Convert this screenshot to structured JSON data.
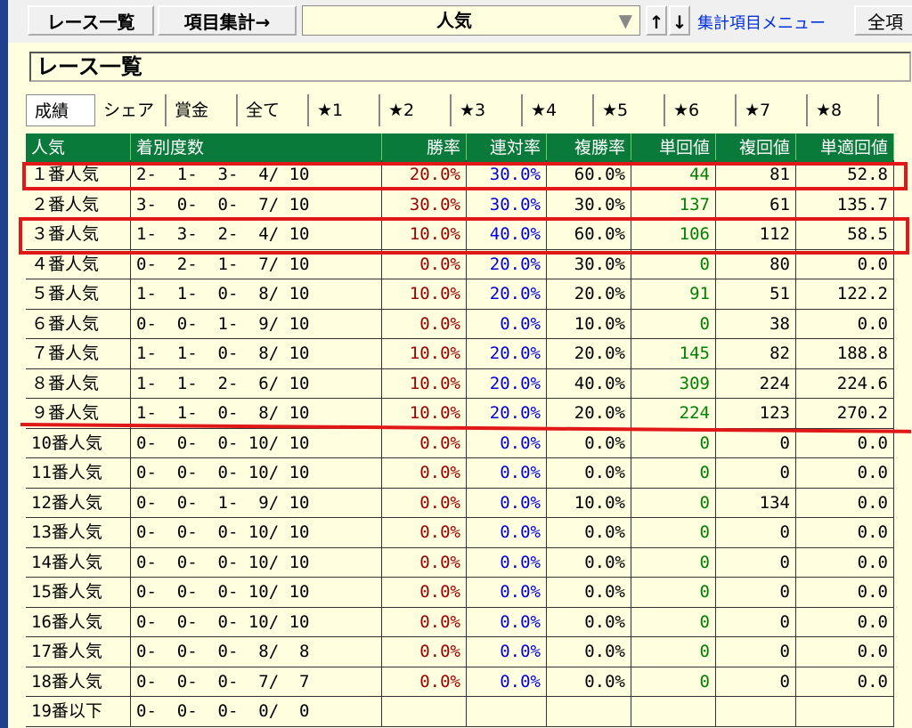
{
  "toolbar": {
    "race_list": "レース一覧",
    "item_summary": "項目集計→",
    "selector": "人気",
    "dropdown_arrow": "▼",
    "sort_up": "↑",
    "sort_down": "↓",
    "menu_link": "集計項目メニュー",
    "all_items": "全項"
  },
  "panel_title": "レース一覧",
  "tabs": [
    "成績",
    "シェア",
    "賞金",
    "全て",
    "★1",
    "★2",
    "★3",
    "★4",
    "★5",
    "★6",
    "★7",
    "★8"
  ],
  "table": {
    "headers": [
      "人気",
      "着別度数",
      "勝率",
      "連対率",
      "複勝率",
      "単回値",
      "複回値",
      "単適回値"
    ],
    "rows": [
      [
        "１番人気",
        "2-  1-  3-  4/ 10",
        "20.0%",
        "30.0%",
        "60.0%",
        "44",
        "81",
        "52.8"
      ],
      [
        "２番人気",
        "3-  0-  0-  7/ 10",
        "30.0%",
        "30.0%",
        "30.0%",
        "137",
        "61",
        "135.7"
      ],
      [
        "３番人気",
        "1-  3-  2-  4/ 10",
        "10.0%",
        "40.0%",
        "60.0%",
        "106",
        "112",
        "58.5"
      ],
      [
        "４番人気",
        "0-  2-  1-  7/ 10",
        "0.0%",
        "20.0%",
        "30.0%",
        "0",
        "80",
        "0.0"
      ],
      [
        "５番人気",
        "1-  1-  0-  8/ 10",
        "10.0%",
        "20.0%",
        "20.0%",
        "91",
        "51",
        "122.2"
      ],
      [
        "６番人気",
        "0-  0-  1-  9/ 10",
        "0.0%",
        "0.0%",
        "10.0%",
        "0",
        "38",
        "0.0"
      ],
      [
        "７番人気",
        "1-  1-  0-  8/ 10",
        "10.0%",
        "20.0%",
        "20.0%",
        "145",
        "82",
        "188.8"
      ],
      [
        "８番人気",
        "1-  1-  2-  6/ 10",
        "10.0%",
        "20.0%",
        "40.0%",
        "309",
        "224",
        "224.6"
      ],
      [
        "９番人気",
        "1-  1-  0-  8/ 10",
        "10.0%",
        "20.0%",
        "20.0%",
        "224",
        "123",
        "270.2"
      ],
      [
        "10番人気",
        "0-  0-  0- 10/ 10",
        "0.0%",
        "0.0%",
        "0.0%",
        "0",
        "0",
        "0.0"
      ],
      [
        "11番人気",
        "0-  0-  0- 10/ 10",
        "0.0%",
        "0.0%",
        "0.0%",
        "0",
        "0",
        "0.0"
      ],
      [
        "12番人気",
        "0-  0-  1-  9/ 10",
        "0.0%",
        "0.0%",
        "10.0%",
        "0",
        "134",
        "0.0"
      ],
      [
        "13番人気",
        "0-  0-  0- 10/ 10",
        "0.0%",
        "0.0%",
        "0.0%",
        "0",
        "0",
        "0.0"
      ],
      [
        "14番人気",
        "0-  0-  0- 10/ 10",
        "0.0%",
        "0.0%",
        "0.0%",
        "0",
        "0",
        "0.0"
      ],
      [
        "15番人気",
        "0-  0-  0- 10/ 10",
        "0.0%",
        "0.0%",
        "0.0%",
        "0",
        "0",
        "0.0"
      ],
      [
        "16番人気",
        "0-  0-  0- 10/ 10",
        "0.0%",
        "0.0%",
        "0.0%",
        "0",
        "0",
        "0.0"
      ],
      [
        "17番人気",
        "0-  0-  0-  8/  8",
        "0.0%",
        "0.0%",
        "0.0%",
        "0",
        "0",
        "0.0"
      ],
      [
        "18番人気",
        "0-  0-  0-  7/  7",
        "0.0%",
        "0.0%",
        "0.0%",
        "0",
        "0",
        "0.0"
      ],
      [
        "19番以下",
        "0-  0-  0-  0/  0"
      ]
    ]
  }
}
